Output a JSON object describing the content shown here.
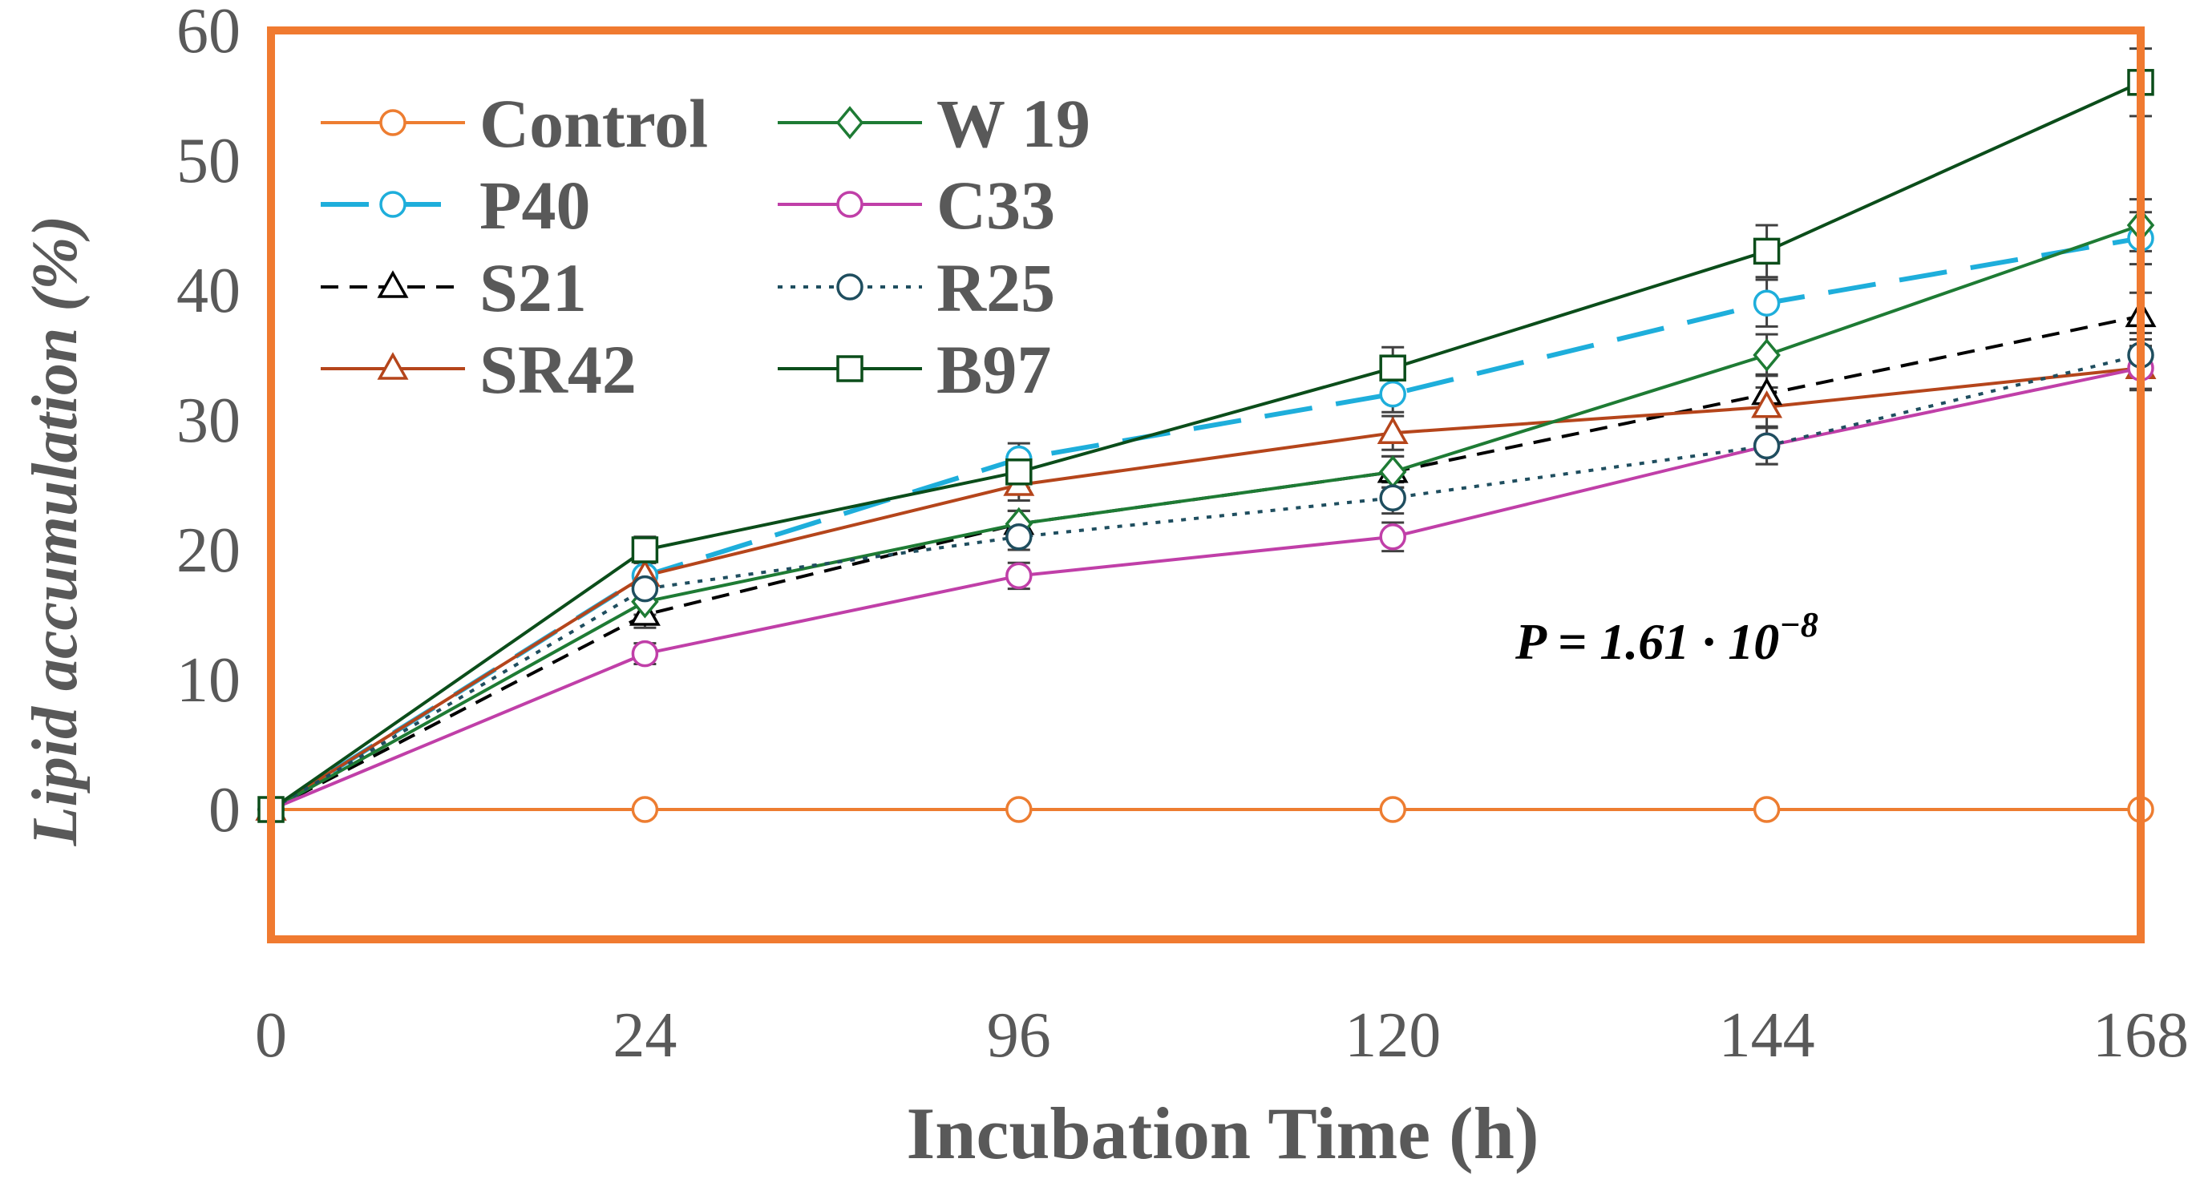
{
  "chart_data": {
    "type": "line",
    "title": "",
    "xlabel": "Incubation Time (h)",
    "ylabel": "Lipid accumulation (%)",
    "categories": [
      "0",
      "24",
      "96",
      "120",
      "144",
      "168"
    ],
    "ylim": [
      -10,
      60
    ],
    "yticks": [
      "0",
      "10",
      "20",
      "30",
      "40",
      "50",
      "60"
    ],
    "grid": false,
    "legend": "top-left",
    "annotation": {
      "prefix": "P = 1.61 · 10",
      "exponent": "−8"
    },
    "series": [
      {
        "name": "Control",
        "values": [
          0,
          0,
          0,
          0,
          0,
          0
        ],
        "errors": [
          0,
          0,
          0,
          0,
          0,
          0
        ],
        "color": "#ED7D31",
        "marker": "circle",
        "dash": "solid",
        "width": 4,
        "marker_fill": "#ffffff"
      },
      {
        "name": "P40",
        "values": [
          0,
          18,
          27,
          32,
          39,
          44
        ],
        "errors": [
          0,
          1,
          1.2,
          1.4,
          1.8,
          2
        ],
        "color": "#1EAEDB",
        "marker": "circle",
        "dash": "longdash",
        "width": 6,
        "marker_fill": "#ffffff"
      },
      {
        "name": "S21",
        "values": [
          0,
          15,
          22,
          26,
          32,
          38
        ],
        "errors": [
          0,
          1,
          1,
          1.2,
          1.5,
          1.8
        ],
        "color": "#000000",
        "marker": "triangle",
        "dash": "dash",
        "width": 4,
        "marker_fill": "#ffffff"
      },
      {
        "name": "SR42",
        "values": [
          0,
          18,
          25,
          29,
          31,
          34
        ],
        "errors": [
          0,
          1,
          1.2,
          1.3,
          1.5,
          1.7
        ],
        "color": "#B5451B",
        "marker": "triangle",
        "dash": "solid",
        "width": 4,
        "marker_fill": "#ffffff"
      },
      {
        "name": "W 19",
        "values": [
          0,
          16,
          22,
          26,
          35,
          45
        ],
        "errors": [
          0,
          1,
          1,
          1.2,
          1.6,
          2
        ],
        "color": "#1E7B34",
        "marker": "diamond",
        "dash": "solid",
        "width": 4,
        "marker_fill": "#ffffff"
      },
      {
        "name": "C33",
        "values": [
          0,
          12,
          18,
          21,
          28,
          34
        ],
        "errors": [
          0,
          0.8,
          1,
          1.1,
          1.4,
          1.6
        ],
        "color": "#C03FA8",
        "marker": "circle",
        "dash": "solid",
        "width": 4,
        "marker_fill": "#ffffff"
      },
      {
        "name": "R25",
        "values": [
          0,
          17,
          21,
          24,
          28,
          35
        ],
        "errors": [
          0,
          1,
          1,
          1.2,
          1.4,
          1.7
        ],
        "color": "#1F4E5F",
        "marker": "circle",
        "dash": "dot",
        "width": 4,
        "marker_fill": "#ffffff"
      },
      {
        "name": "B97",
        "values": [
          0,
          20,
          26,
          34,
          43,
          56
        ],
        "errors": [
          0,
          1,
          1.2,
          1.6,
          2,
          2.6
        ],
        "color": "#0B4D1A",
        "marker": "square",
        "dash": "solid",
        "width": 4,
        "marker_fill": "#ffffff"
      }
    ],
    "frame_color": "#F07A30",
    "axis_color": "#595959"
  }
}
